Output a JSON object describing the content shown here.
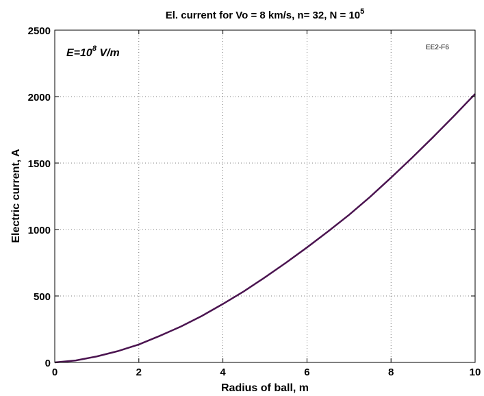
{
  "chart_data": {
    "type": "line",
    "title": {
      "text": "El. current for Vo = 8 km/s, n= 32, N = 10",
      "sup": "5"
    },
    "xlabel": "Radius of ball, m",
    "ylabel": "Electric current, A",
    "xlim": [
      0,
      10
    ],
    "ylim": [
      0,
      2500
    ],
    "xticks": [
      0,
      2,
      4,
      6,
      8,
      10
    ],
    "xtick_labels": [
      "0",
      "2",
      "4",
      "6",
      "8",
      "10"
    ],
    "yticks": [
      0,
      500,
      1000,
      1500,
      2000,
      2500
    ],
    "ytick_labels": [
      "0",
      "500",
      "1000",
      "1500",
      "2000",
      "2500"
    ],
    "grid": true,
    "annotations": {
      "field": {
        "base": "E=10",
        "sup": "8",
        "unit": " V/m"
      },
      "tag": "EE2-F6"
    },
    "series": [
      {
        "color": "#4b1450",
        "x": [
          0,
          0.5,
          1,
          1.5,
          2,
          2.5,
          3,
          3.5,
          4,
          4.5,
          5,
          5.5,
          6,
          6.5,
          7,
          7.5,
          8,
          8.5,
          9,
          9.5,
          10
        ],
        "y": [
          0,
          15,
          45,
          85,
          135,
          200,
          270,
          350,
          440,
          535,
          640,
          750,
          865,
          985,
          1110,
          1245,
          1390,
          1540,
          1695,
          1855,
          2020
        ]
      }
    ]
  }
}
